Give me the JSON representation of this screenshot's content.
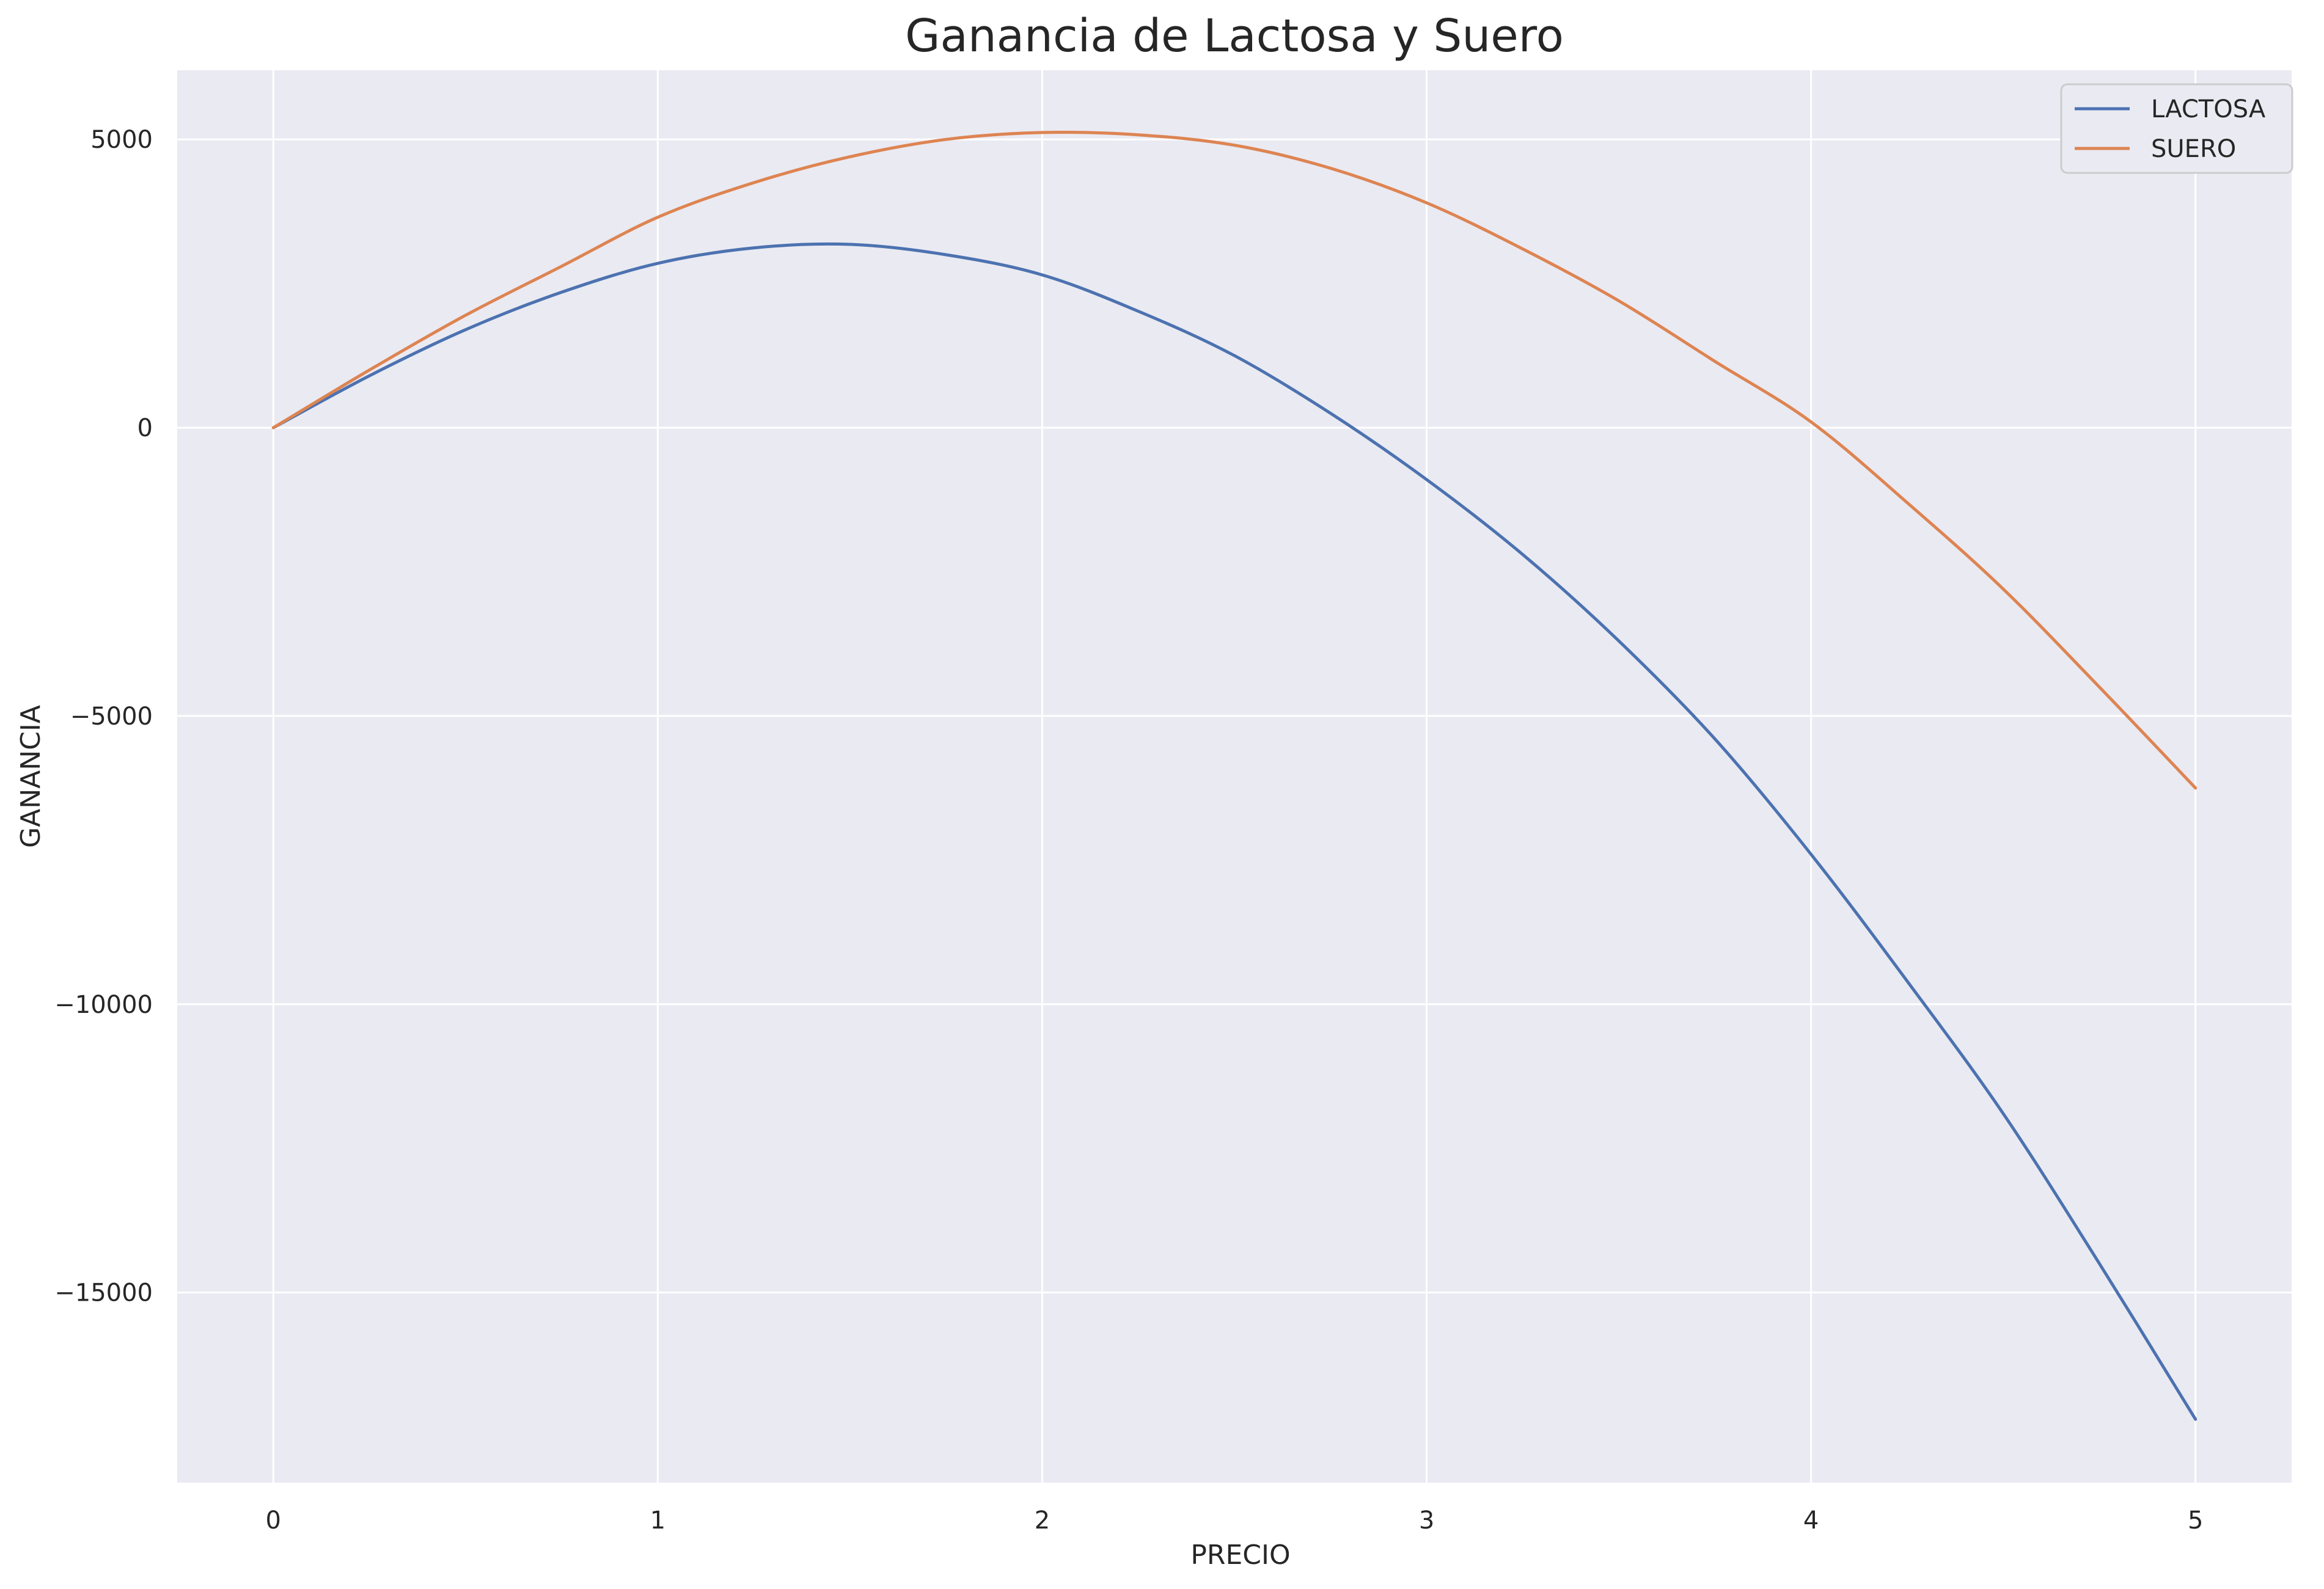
{
  "chart_data": {
    "type": "line",
    "title": "Ganancia de Lactosa y Suero",
    "xlabel": "PRECIO",
    "ylabel": "GANANCIA",
    "xlim": [
      -0.25,
      5.25
    ],
    "ylim": [
      -18300,
      6200
    ],
    "xticks": [
      0,
      1,
      2,
      3,
      4,
      5
    ],
    "xtick_labels": [
      "0",
      "1",
      "2",
      "3",
      "4",
      "5"
    ],
    "yticks": [
      5000,
      0,
      -5000,
      -10000,
      -15000
    ],
    "ytick_labels": [
      "5000",
      "0",
      "−5000",
      "−10000",
      "−15000"
    ],
    "grid": true,
    "legend_position": "top-right",
    "series": [
      {
        "name": "LACTOSA",
        "color": "#4c72b0",
        "x": [
          0,
          0.25,
          0.5,
          0.75,
          1.0,
          1.25,
          1.5,
          1.75,
          2.0,
          2.25,
          2.5,
          2.75,
          3.0,
          3.25,
          3.5,
          3.75,
          4.0,
          4.25,
          4.5,
          4.75,
          5.0
        ],
        "y": [
          0,
          900,
          1700,
          2350,
          2850,
          3120,
          3180,
          3000,
          2650,
          2020,
          1250,
          250,
          -900,
          -2200,
          -3700,
          -5400,
          -7400,
          -9600,
          -11900,
          -14500,
          -17200
        ]
      },
      {
        "name": "SUERO",
        "color": "#dd8452",
        "x": [
          0,
          0.25,
          0.5,
          0.75,
          1.0,
          1.25,
          1.5,
          1.75,
          2.0,
          2.25,
          2.5,
          2.75,
          3.0,
          3.25,
          3.5,
          3.75,
          4.0,
          4.25,
          4.5,
          4.75,
          5.0
        ],
        "y": [
          0,
          1000,
          1950,
          2800,
          3650,
          4250,
          4700,
          5000,
          5120,
          5080,
          4900,
          4500,
          3900,
          3100,
          2200,
          1150,
          100,
          -1300,
          -2800,
          -4500,
          -6250
        ]
      }
    ]
  }
}
